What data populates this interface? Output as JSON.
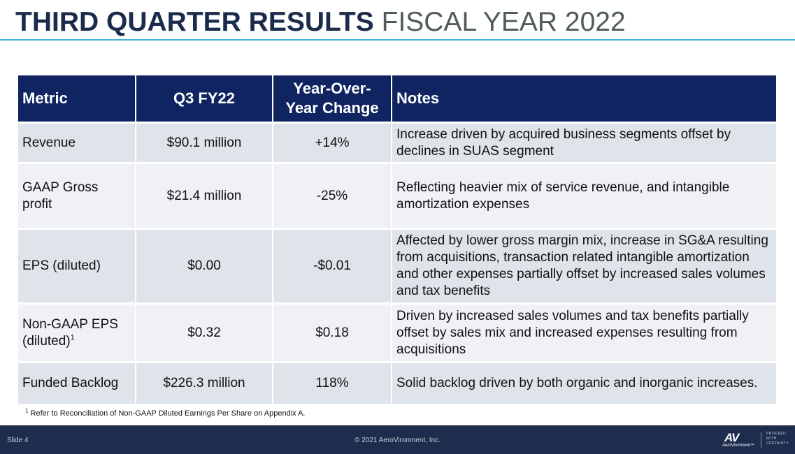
{
  "title": {
    "bold": "THIRD QUARTER RESULTS",
    "light": "FISCAL YEAR 2022"
  },
  "table": {
    "headers": [
      "Metric",
      "Q3 FY22",
      "Year-Over-Year Change",
      "Notes"
    ],
    "rows": [
      {
        "metric": "Revenue",
        "value": "$90.1 million",
        "change": "+14%",
        "notes": "Increase driven by acquired business segments offset by declines in SUAS segment"
      },
      {
        "metric": "GAAP Gross profit",
        "value": "$21.4 million",
        "change": "-25%",
        "notes": "Reflecting heavier mix of service revenue, and intangible amortization expenses"
      },
      {
        "metric": "EPS (diluted)",
        "value": "$0.00",
        "change": "-$0.01",
        "notes": "Affected by lower gross margin mix, increase in SG&A resulting from acquisitions, transaction related intangible amortization and other expenses partially offset by increased sales volumes and tax benefits"
      },
      {
        "metric": "Non-GAAP EPS (diluted)",
        "metric_sup": "1",
        "value": "$0.32",
        "change": "$0.18",
        "notes": "Driven by increased sales volumes and tax benefits partially offset by sales mix and increased expenses resulting from acquisitions"
      },
      {
        "metric": "Funded Backlog",
        "value": "$226.3 million",
        "change": "118%",
        "notes": "Solid backlog driven by both organic and inorganic increases."
      }
    ]
  },
  "footnote": {
    "marker": "1",
    "text": "Refer to Reconciliation of Non-GAAP Diluted Earnings Per Share on Appendix A."
  },
  "footer": {
    "slide": "Slide 4",
    "copyright": "© 2021 AeroVironment, Inc.",
    "logo_mark": "AV",
    "logo_name": "AeroVironment™",
    "tagline": [
      "PROCEED",
      "WITH",
      "CERTAINTY"
    ]
  }
}
